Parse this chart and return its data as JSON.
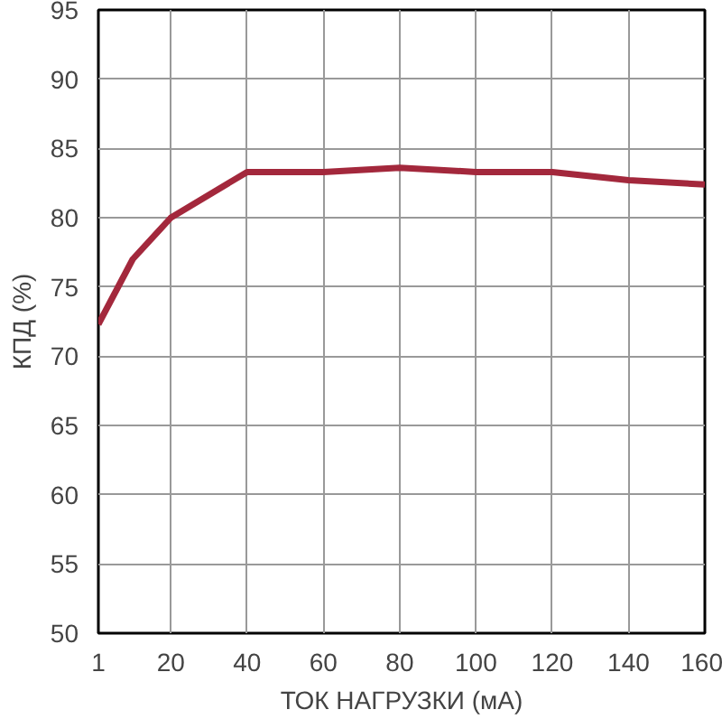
{
  "chart_data": {
    "type": "line",
    "xlabel": "ТОК НАГРУЗКИ (мА)",
    "ylabel": "КПД (%)",
    "x": [
      1,
      10,
      20,
      40,
      60,
      80,
      100,
      120,
      140,
      160
    ],
    "series": [
      {
        "color": "#a3283c",
        "values": [
          72.3,
          77,
          80,
          83.3,
          83.3,
          83.6,
          83.3,
          83.3,
          82.7,
          82.4
        ]
      }
    ],
    "xlim": [
      1,
      160
    ],
    "xticks": [
      1,
      20,
      40,
      60,
      80,
      100,
      120,
      140,
      160
    ],
    "ylim": [
      50,
      95
    ],
    "yticks": [
      50,
      55,
      60,
      65,
      70,
      75,
      80,
      85,
      90,
      95
    ],
    "grid": true,
    "marker": "none",
    "line_style": "solid"
  }
}
